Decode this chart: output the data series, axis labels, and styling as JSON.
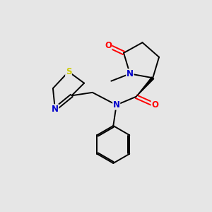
{
  "background_color": "#e6e6e6",
  "bond_color": "#000000",
  "N_color": "#0000cc",
  "O_color": "#ff0000",
  "S_color": "#cccc00",
  "figure_size": [
    3.0,
    3.0
  ],
  "dpi": 100,
  "lw": 1.4,
  "fs": 8.5,
  "xlim": [
    0,
    10
  ],
  "ylim": [
    0,
    10
  ]
}
